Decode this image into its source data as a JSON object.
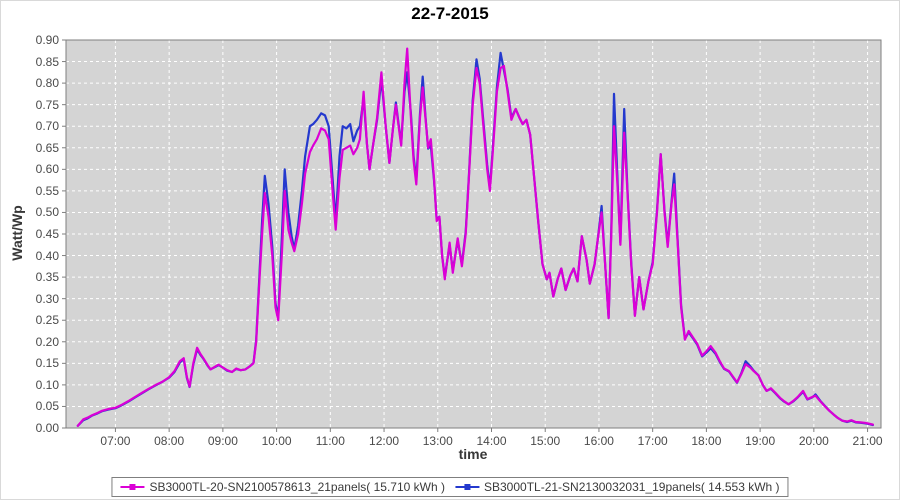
{
  "title": "22-7-2015",
  "chart_data": {
    "type": "line",
    "title": "22-7-2015",
    "xlabel": "time",
    "ylabel": "Watt/Wp",
    "ylim": [
      0.0,
      0.9
    ],
    "ytick_step": 0.05,
    "x_range_hours": [
      6.08,
      21.25
    ],
    "xtick_labels": [
      "07:00",
      "08:00",
      "09:00",
      "10:00",
      "11:00",
      "12:00",
      "13:00",
      "14:00",
      "15:00",
      "16:00",
      "17:00",
      "18:00",
      "19:00",
      "20:00",
      "21:00"
    ],
    "plot_background": "#d4d4d4",
    "grid": {
      "show": true,
      "color": "#ffffff",
      "style": "dashed"
    },
    "border_color": "#7f7f7f",
    "tick_label_color": "#4a4a4a",
    "legend_position": "bottom",
    "x_hours": [
      6.3,
      6.4,
      6.48,
      6.57,
      6.67,
      6.75,
      6.87,
      7.0,
      7.12,
      7.25,
      7.38,
      7.5,
      7.62,
      7.75,
      7.87,
      8.0,
      8.1,
      8.2,
      8.27,
      8.33,
      8.38,
      8.45,
      8.52,
      8.58,
      8.63,
      8.72,
      8.77,
      8.85,
      8.92,
      9.0,
      9.08,
      9.17,
      9.25,
      9.33,
      9.42,
      9.5,
      9.57,
      9.62,
      9.67,
      9.73,
      9.78,
      9.85,
      9.92,
      9.98,
      10.03,
      10.1,
      10.15,
      10.22,
      10.28,
      10.33,
      10.4,
      10.47,
      10.53,
      10.62,
      10.68,
      10.75,
      10.83,
      10.9,
      10.97,
      11.03,
      11.1,
      11.17,
      11.23,
      11.3,
      11.37,
      11.43,
      11.5,
      11.55,
      11.62,
      11.68,
      11.73,
      11.8,
      11.87,
      11.95,
      12.03,
      12.1,
      12.17,
      12.22,
      12.27,
      12.32,
      12.38,
      12.43,
      12.5,
      12.55,
      12.6,
      12.67,
      12.72,
      12.77,
      12.82,
      12.87,
      12.93,
      12.98,
      13.03,
      13.08,
      13.13,
      13.22,
      13.28,
      13.37,
      13.45,
      13.52,
      13.58,
      13.65,
      13.72,
      13.78,
      13.85,
      13.92,
      13.97,
      14.03,
      14.1,
      14.17,
      14.23,
      14.3,
      14.37,
      14.45,
      14.52,
      14.58,
      14.65,
      14.72,
      14.78,
      14.87,
      14.95,
      15.03,
      15.08,
      15.15,
      15.23,
      15.3,
      15.38,
      15.47,
      15.53,
      15.6,
      15.68,
      15.77,
      15.83,
      15.92,
      15.98,
      16.05,
      16.12,
      16.18,
      16.23,
      16.28,
      16.35,
      16.4,
      16.47,
      16.53,
      16.6,
      16.67,
      16.75,
      16.83,
      16.92,
      17.0,
      17.08,
      17.15,
      17.22,
      17.28,
      17.35,
      17.4,
      17.47,
      17.53,
      17.6,
      17.67,
      17.75,
      17.83,
      17.92,
      18.0,
      18.08,
      18.17,
      18.25,
      18.33,
      18.42,
      18.5,
      18.57,
      18.65,
      18.73,
      18.82,
      18.88,
      18.97,
      19.05,
      19.12,
      19.2,
      19.28,
      19.37,
      19.45,
      19.53,
      19.62,
      19.7,
      19.8,
      19.88,
      19.97,
      20.03,
      20.12,
      20.2,
      20.28,
      20.37,
      20.45,
      20.53,
      20.62,
      20.7,
      20.78,
      20.87,
      20.95,
      21.03,
      21.1
    ],
    "series": [
      {
        "name": "SB3000TL-20-SN2100578613_21panels( 15.710 kWh )",
        "color": "#db00d6",
        "values": [
          0.005,
          0.02,
          0.024,
          0.03,
          0.035,
          0.04,
          0.044,
          0.047,
          0.054,
          0.063,
          0.073,
          0.082,
          0.091,
          0.1,
          0.107,
          0.118,
          0.132,
          0.155,
          0.162,
          0.118,
          0.096,
          0.15,
          0.186,
          0.172,
          0.163,
          0.145,
          0.136,
          0.142,
          0.147,
          0.14,
          0.134,
          0.13,
          0.138,
          0.134,
          0.136,
          0.143,
          0.15,
          0.2,
          0.32,
          0.45,
          0.545,
          0.49,
          0.4,
          0.28,
          0.25,
          0.41,
          0.55,
          0.46,
          0.43,
          0.41,
          0.45,
          0.52,
          0.59,
          0.64,
          0.655,
          0.67,
          0.695,
          0.69,
          0.67,
          0.57,
          0.46,
          0.58,
          0.645,
          0.65,
          0.655,
          0.635,
          0.65,
          0.67,
          0.78,
          0.66,
          0.6,
          0.66,
          0.72,
          0.825,
          0.7,
          0.615,
          0.7,
          0.75,
          0.7,
          0.655,
          0.8,
          0.88,
          0.72,
          0.62,
          0.565,
          0.72,
          0.79,
          0.72,
          0.65,
          0.67,
          0.58,
          0.48,
          0.49,
          0.4,
          0.345,
          0.43,
          0.36,
          0.44,
          0.375,
          0.45,
          0.58,
          0.75,
          0.835,
          0.8,
          0.7,
          0.6,
          0.55,
          0.65,
          0.78,
          0.835,
          0.84,
          0.78,
          0.715,
          0.74,
          0.72,
          0.705,
          0.715,
          0.68,
          0.6,
          0.48,
          0.38,
          0.345,
          0.36,
          0.305,
          0.345,
          0.37,
          0.32,
          0.355,
          0.37,
          0.34,
          0.445,
          0.39,
          0.335,
          0.38,
          0.44,
          0.5,
          0.37,
          0.255,
          0.45,
          0.7,
          0.55,
          0.425,
          0.685,
          0.55,
          0.38,
          0.26,
          0.35,
          0.275,
          0.34,
          0.38,
          0.5,
          0.635,
          0.5,
          0.42,
          0.52,
          0.565,
          0.42,
          0.28,
          0.205,
          0.225,
          0.21,
          0.195,
          0.168,
          0.178,
          0.19,
          0.175,
          0.155,
          0.138,
          0.132,
          0.118,
          0.106,
          0.125,
          0.148,
          0.14,
          0.132,
          0.122,
          0.1,
          0.086,
          0.092,
          0.082,
          0.07,
          0.062,
          0.055,
          0.063,
          0.072,
          0.086,
          0.067,
          0.072,
          0.075,
          0.062,
          0.051,
          0.041,
          0.031,
          0.023,
          0.017,
          0.015,
          0.018,
          0.014,
          0.013,
          0.012,
          0.01,
          0.008
        ]
      },
      {
        "name": "SB3000TL-21-SN2130032031_19panels( 14.553 kWh )",
        "color": "#2439ce",
        "values": [
          0.005,
          0.018,
          0.022,
          0.029,
          0.034,
          0.039,
          0.043,
          0.046,
          0.053,
          0.062,
          0.072,
          0.081,
          0.09,
          0.099,
          0.107,
          0.117,
          0.13,
          0.152,
          0.16,
          0.116,
          0.095,
          0.147,
          0.183,
          0.17,
          0.162,
          0.144,
          0.136,
          0.141,
          0.146,
          0.14,
          0.133,
          0.13,
          0.137,
          0.134,
          0.136,
          0.143,
          0.151,
          0.205,
          0.33,
          0.48,
          0.585,
          0.52,
          0.42,
          0.29,
          0.255,
          0.45,
          0.6,
          0.5,
          0.445,
          0.415,
          0.47,
          0.55,
          0.63,
          0.7,
          0.705,
          0.715,
          0.73,
          0.725,
          0.7,
          0.6,
          0.48,
          0.63,
          0.7,
          0.695,
          0.705,
          0.665,
          0.69,
          0.7,
          0.765,
          0.66,
          0.6,
          0.66,
          0.715,
          0.81,
          0.7,
          0.615,
          0.7,
          0.755,
          0.705,
          0.66,
          0.78,
          0.825,
          0.73,
          0.63,
          0.575,
          0.73,
          0.815,
          0.725,
          0.648,
          0.655,
          0.575,
          0.485,
          0.49,
          0.4,
          0.35,
          0.425,
          0.365,
          0.435,
          0.38,
          0.455,
          0.585,
          0.76,
          0.855,
          0.81,
          0.71,
          0.61,
          0.555,
          0.66,
          0.79,
          0.87,
          0.83,
          0.785,
          0.72,
          0.74,
          0.72,
          0.705,
          0.715,
          0.68,
          0.6,
          0.48,
          0.38,
          0.345,
          0.36,
          0.305,
          0.345,
          0.37,
          0.32,
          0.355,
          0.37,
          0.34,
          0.445,
          0.39,
          0.335,
          0.38,
          0.44,
          0.515,
          0.37,
          0.255,
          0.46,
          0.775,
          0.56,
          0.43,
          0.74,
          0.555,
          0.385,
          0.262,
          0.35,
          0.275,
          0.34,
          0.385,
          0.505,
          0.635,
          0.505,
          0.425,
          0.525,
          0.59,
          0.425,
          0.285,
          0.207,
          0.222,
          0.208,
          0.193,
          0.166,
          0.175,
          0.185,
          0.172,
          0.153,
          0.137,
          0.131,
          0.117,
          0.105,
          0.127,
          0.155,
          0.143,
          0.133,
          0.122,
          0.1,
          0.086,
          0.091,
          0.081,
          0.069,
          0.061,
          0.055,
          0.062,
          0.071,
          0.084,
          0.066,
          0.071,
          0.078,
          0.063,
          0.052,
          0.041,
          0.031,
          0.023,
          0.017,
          0.014,
          0.017,
          0.013,
          0.012,
          0.011,
          0.009,
          0.007
        ]
      }
    ]
  }
}
